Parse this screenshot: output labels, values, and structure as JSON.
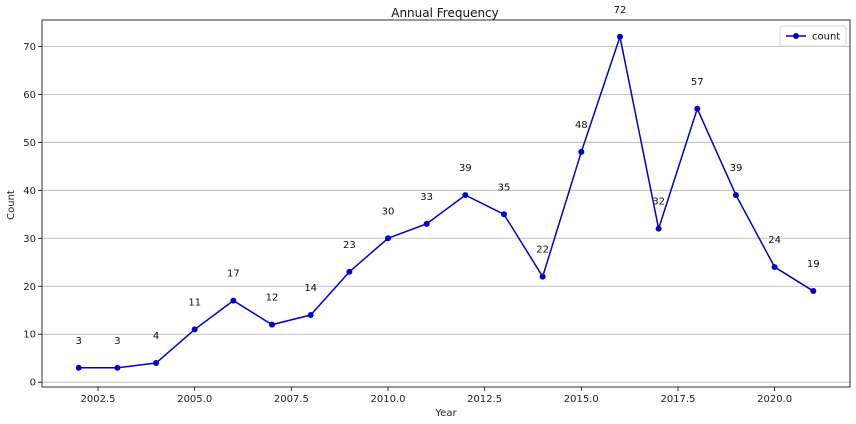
{
  "chart_data": {
    "type": "line",
    "title": "Annual Frequency",
    "xlabel": "Year",
    "ylabel": "Count",
    "xlim": [
      2001.05,
      2021.95
    ],
    "ylim": [
      -1,
      75.5
    ],
    "x_ticks": [
      "2002.5",
      "2005.0",
      "2007.5",
      "2010.0",
      "2012.5",
      "2015.0",
      "2017.5",
      "2020.0"
    ],
    "y_ticks": [
      "0",
      "10",
      "20",
      "30",
      "40",
      "50",
      "60",
      "70"
    ],
    "grid": "horizontal",
    "legend": "top-right",
    "series": [
      {
        "name": "count",
        "color": "#0000cc",
        "marker": "circle",
        "x": [
          2002,
          2003,
          2004,
          2005,
          2006,
          2007,
          2008,
          2009,
          2010,
          2011,
          2012,
          2013,
          2014,
          2015,
          2016,
          2017,
          2018,
          2019,
          2020,
          2021
        ],
        "y": [
          3,
          3,
          4,
          11,
          17,
          12,
          14,
          23,
          30,
          33,
          39,
          35,
          22,
          48,
          72,
          32,
          57,
          39,
          24,
          19
        ],
        "labels": [
          "3",
          "3",
          "4",
          "11",
          "17",
          "12",
          "14",
          "23",
          "30",
          "33",
          "39",
          "35",
          "22",
          "48",
          "72",
          "32",
          "57",
          "39",
          "24",
          "19"
        ]
      }
    ]
  }
}
